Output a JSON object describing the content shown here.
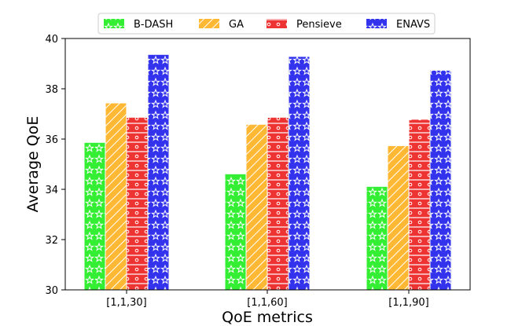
{
  "chart_data": {
    "type": "bar",
    "xlabel": "QoE metrics",
    "ylabel": "Average QoE",
    "categories": [
      "[1,1,30]",
      "[1,1,60]",
      "[1,1,90]"
    ],
    "ylim": [
      30,
      40
    ],
    "yticks": [
      "30",
      "32",
      "34",
      "36",
      "38",
      "40"
    ],
    "legend_position": "top-center",
    "grid": false,
    "series": [
      {
        "name": "B-DASH",
        "values": [
          35.85,
          34.6,
          34.1
        ],
        "color": "#33ee33",
        "pattern": "stars"
      },
      {
        "name": "GA",
        "values": [
          37.42,
          36.57,
          35.72
        ],
        "color": "#ffb833",
        "pattern": "diagonal"
      },
      {
        "name": "Pensieve",
        "values": [
          36.85,
          36.85,
          36.77
        ],
        "color": "#ee3333",
        "pattern": "rings"
      },
      {
        "name": "ENAVS",
        "values": [
          39.35,
          39.27,
          38.72
        ],
        "color": "#3333ee",
        "pattern": "stars"
      }
    ]
  }
}
